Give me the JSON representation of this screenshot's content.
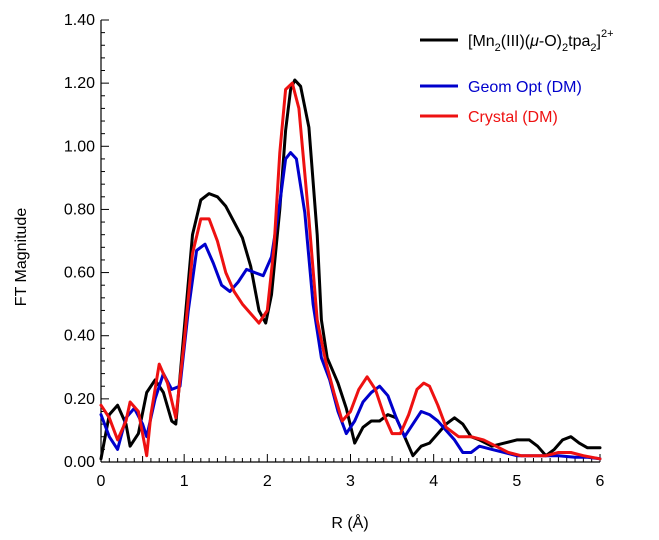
{
  "chart_data": {
    "type": "line",
    "xlabel": "R (Å)",
    "ylabel": "FT Magnitude",
    "xlim": [
      0,
      6
    ],
    "ylim": [
      0,
      1.4
    ],
    "x_ticks": [
      "0",
      "1",
      "2",
      "3",
      "4",
      "5",
      "6"
    ],
    "y_ticks": [
      "0.00",
      "0.20",
      "0.40",
      "0.60",
      "0.80",
      "1.00",
      "1.20",
      "1.40"
    ],
    "grid": false,
    "legend_position": "top-right",
    "legend": {
      "black": {
        "base": "[Mn",
        "sub1": "2",
        "mid1": "(III)(",
        "mu": "μ",
        "mid2": "-O)",
        "sub2": "2",
        "mid3": "tpa",
        "sub3": "2",
        "mid4": "]",
        "sup": "2+"
      },
      "blue": "Geom Opt (DM)",
      "red": "Crystal (DM)"
    },
    "series": [
      {
        "name": "[Mn2(III)(μ-O)2tpa2]2+",
        "color": "#000000",
        "points": [
          [
            0.0,
            0.01
          ],
          [
            0.1,
            0.15
          ],
          [
            0.2,
            0.18
          ],
          [
            0.3,
            0.12
          ],
          [
            0.35,
            0.05
          ],
          [
            0.45,
            0.09
          ],
          [
            0.55,
            0.22
          ],
          [
            0.65,
            0.26
          ],
          [
            0.75,
            0.22
          ],
          [
            0.85,
            0.13
          ],
          [
            0.9,
            0.12
          ],
          [
            1.0,
            0.42
          ],
          [
            1.1,
            0.72
          ],
          [
            1.2,
            0.83
          ],
          [
            1.3,
            0.85
          ],
          [
            1.4,
            0.84
          ],
          [
            1.5,
            0.81
          ],
          [
            1.6,
            0.76
          ],
          [
            1.7,
            0.71
          ],
          [
            1.8,
            0.62
          ],
          [
            1.9,
            0.48
          ],
          [
            1.98,
            0.44
          ],
          [
            2.05,
            0.53
          ],
          [
            2.15,
            0.8
          ],
          [
            2.22,
            1.05
          ],
          [
            2.28,
            1.18
          ],
          [
            2.33,
            1.21
          ],
          [
            2.4,
            1.19
          ],
          [
            2.5,
            1.06
          ],
          [
            2.6,
            0.72
          ],
          [
            2.65,
            0.45
          ],
          [
            2.72,
            0.33
          ],
          [
            2.85,
            0.25
          ],
          [
            2.95,
            0.17
          ],
          [
            3.05,
            0.06
          ],
          [
            3.15,
            0.11
          ],
          [
            3.25,
            0.13
          ],
          [
            3.35,
            0.13
          ],
          [
            3.45,
            0.15
          ],
          [
            3.55,
            0.14
          ],
          [
            3.65,
            0.08
          ],
          [
            3.75,
            0.02
          ],
          [
            3.85,
            0.05
          ],
          [
            3.95,
            0.06
          ],
          [
            4.05,
            0.09
          ],
          [
            4.15,
            0.12
          ],
          [
            4.25,
            0.14
          ],
          [
            4.35,
            0.12
          ],
          [
            4.45,
            0.08
          ],
          [
            4.55,
            0.07
          ],
          [
            4.7,
            0.05
          ],
          [
            4.85,
            0.06
          ],
          [
            5.0,
            0.07
          ],
          [
            5.15,
            0.07
          ],
          [
            5.25,
            0.05
          ],
          [
            5.35,
            0.02
          ],
          [
            5.45,
            0.04
          ],
          [
            5.55,
            0.07
          ],
          [
            5.65,
            0.08
          ],
          [
            5.75,
            0.06
          ],
          [
            5.85,
            0.045
          ],
          [
            6.0,
            0.045
          ]
        ]
      },
      {
        "name": "Geom Opt (DM)",
        "color": "#0000cc",
        "points": [
          [
            0.0,
            0.15
          ],
          [
            0.1,
            0.08
          ],
          [
            0.2,
            0.04
          ],
          [
            0.3,
            0.14
          ],
          [
            0.4,
            0.17
          ],
          [
            0.5,
            0.12
          ],
          [
            0.55,
            0.08
          ],
          [
            0.65,
            0.2
          ],
          [
            0.75,
            0.28
          ],
          [
            0.85,
            0.23
          ],
          [
            0.95,
            0.24
          ],
          [
            1.05,
            0.48
          ],
          [
            1.15,
            0.67
          ],
          [
            1.25,
            0.69
          ],
          [
            1.35,
            0.63
          ],
          [
            1.45,
            0.56
          ],
          [
            1.55,
            0.54
          ],
          [
            1.65,
            0.57
          ],
          [
            1.75,
            0.61
          ],
          [
            1.85,
            0.6
          ],
          [
            1.95,
            0.59
          ],
          [
            2.05,
            0.65
          ],
          [
            2.15,
            0.82
          ],
          [
            2.22,
            0.96
          ],
          [
            2.28,
            0.98
          ],
          [
            2.35,
            0.96
          ],
          [
            2.45,
            0.79
          ],
          [
            2.55,
            0.5
          ],
          [
            2.65,
            0.33
          ],
          [
            2.75,
            0.26
          ],
          [
            2.85,
            0.16
          ],
          [
            2.95,
            0.09
          ],
          [
            3.05,
            0.13
          ],
          [
            3.15,
            0.19
          ],
          [
            3.25,
            0.22
          ],
          [
            3.35,
            0.24
          ],
          [
            3.45,
            0.21
          ],
          [
            3.55,
            0.14
          ],
          [
            3.65,
            0.08
          ],
          [
            3.75,
            0.12
          ],
          [
            3.85,
            0.16
          ],
          [
            3.95,
            0.15
          ],
          [
            4.05,
            0.13
          ],
          [
            4.15,
            0.1
          ],
          [
            4.25,
            0.07
          ],
          [
            4.35,
            0.03
          ],
          [
            4.45,
            0.03
          ],
          [
            4.55,
            0.05
          ],
          [
            4.7,
            0.04
          ],
          [
            4.85,
            0.03
          ],
          [
            5.0,
            0.02
          ],
          [
            5.15,
            0.02
          ],
          [
            5.3,
            0.02
          ],
          [
            5.5,
            0.02
          ],
          [
            5.7,
            0.015
          ],
          [
            5.85,
            0.015
          ],
          [
            6.0,
            0.01
          ]
        ]
      },
      {
        "name": "Crystal (DM)",
        "color": "#ee1111",
        "points": [
          [
            0.0,
            0.18
          ],
          [
            0.1,
            0.14
          ],
          [
            0.2,
            0.07
          ],
          [
            0.3,
            0.13
          ],
          [
            0.35,
            0.19
          ],
          [
            0.45,
            0.16
          ],
          [
            0.55,
            0.02
          ],
          [
            0.6,
            0.15
          ],
          [
            0.7,
            0.31
          ],
          [
            0.8,
            0.25
          ],
          [
            0.9,
            0.14
          ],
          [
            1.0,
            0.38
          ],
          [
            1.1,
            0.66
          ],
          [
            1.2,
            0.77
          ],
          [
            1.3,
            0.77
          ],
          [
            1.4,
            0.7
          ],
          [
            1.5,
            0.6
          ],
          [
            1.6,
            0.54
          ],
          [
            1.7,
            0.5
          ],
          [
            1.8,
            0.47
          ],
          [
            1.9,
            0.44
          ],
          [
            2.0,
            0.48
          ],
          [
            2.08,
            0.68
          ],
          [
            2.15,
            0.98
          ],
          [
            2.22,
            1.18
          ],
          [
            2.3,
            1.2
          ],
          [
            2.38,
            1.12
          ],
          [
            2.5,
            0.77
          ],
          [
            2.6,
            0.45
          ],
          [
            2.7,
            0.32
          ],
          [
            2.8,
            0.22
          ],
          [
            2.9,
            0.13
          ],
          [
            3.0,
            0.16
          ],
          [
            3.1,
            0.23
          ],
          [
            3.2,
            0.27
          ],
          [
            3.3,
            0.23
          ],
          [
            3.4,
            0.15
          ],
          [
            3.5,
            0.09
          ],
          [
            3.6,
            0.09
          ],
          [
            3.7,
            0.15
          ],
          [
            3.8,
            0.23
          ],
          [
            3.88,
            0.25
          ],
          [
            3.95,
            0.24
          ],
          [
            4.05,
            0.18
          ],
          [
            4.15,
            0.11
          ],
          [
            4.3,
            0.08
          ],
          [
            4.45,
            0.08
          ],
          [
            4.6,
            0.07
          ],
          [
            4.75,
            0.05
          ],
          [
            4.9,
            0.03
          ],
          [
            5.05,
            0.02
          ],
          [
            5.2,
            0.02
          ],
          [
            5.35,
            0.02
          ],
          [
            5.5,
            0.03
          ],
          [
            5.65,
            0.03
          ],
          [
            5.8,
            0.02
          ],
          [
            6.0,
            0.01
          ]
        ]
      }
    ]
  }
}
